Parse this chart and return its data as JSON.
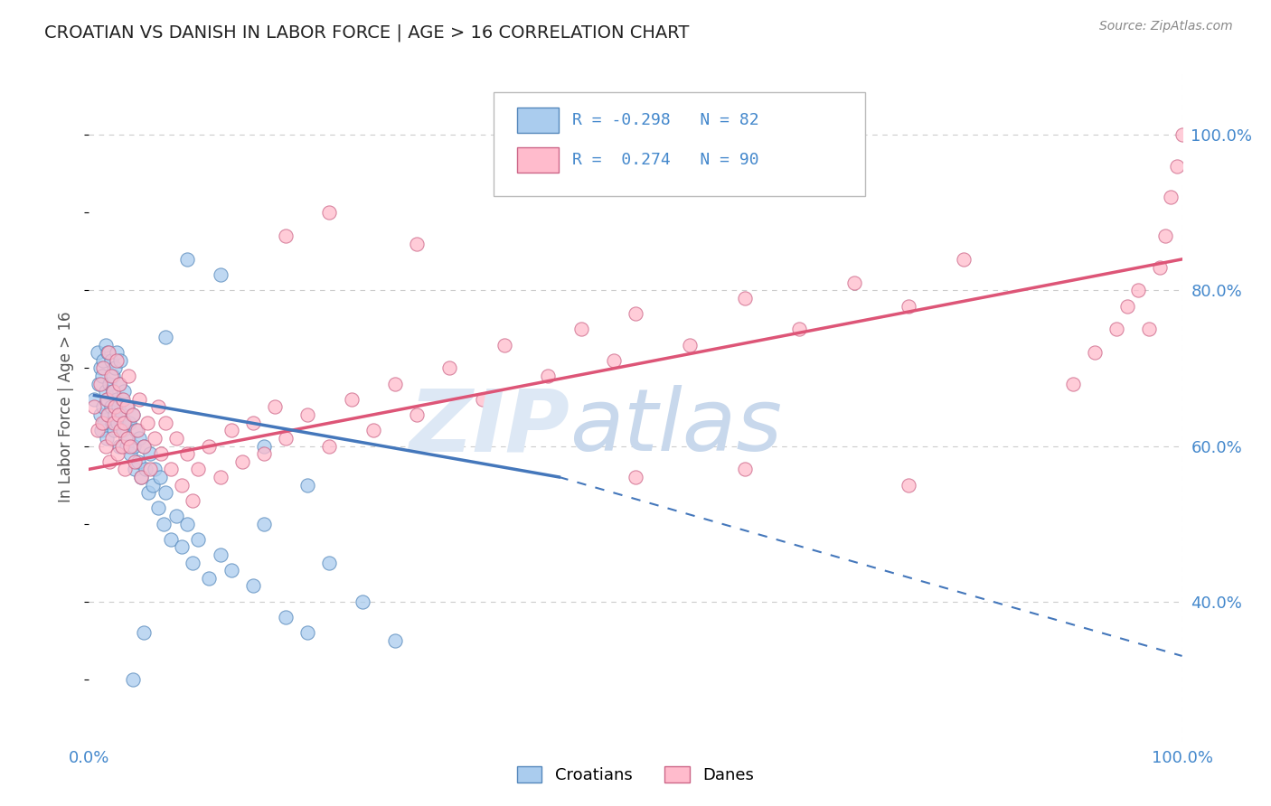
{
  "title": "CROATIAN VS DANISH IN LABOR FORCE | AGE > 16 CORRELATION CHART",
  "source_text": "Source: ZipAtlas.com",
  "ylabel": "In Labor Force | Age > 16",
  "xlim": [
    0.0,
    1.0
  ],
  "ylim_data": [
    0.22,
    1.08
  ],
  "y_tick_vals_right": [
    0.4,
    0.6,
    0.8,
    1.0
  ],
  "y_tick_labels_right": [
    "40.0%",
    "60.0%",
    "80.0%",
    "100.0%"
  ],
  "croatian_color": "#aaccee",
  "croatian_edge": "#5588bb",
  "danish_color": "#ffbbcc",
  "danish_edge": "#cc6688",
  "trend_croatian_color": "#4477bb",
  "trend_danish_color": "#dd5577",
  "grid_color": "#cccccc",
  "background_color": "#ffffff",
  "title_color": "#222222",
  "title_fontsize": 14,
  "tick_color": "#4488cc",
  "legend_r_cro": "R = -0.298",
  "legend_n_cro": "N = 82",
  "legend_r_dan": "R =  0.274",
  "legend_n_dan": "N = 90",
  "croatian_scatter_x": [
    0.005,
    0.008,
    0.009,
    0.01,
    0.01,
    0.011,
    0.012,
    0.013,
    0.013,
    0.014,
    0.015,
    0.015,
    0.016,
    0.017,
    0.017,
    0.018,
    0.019,
    0.02,
    0.02,
    0.021,
    0.022,
    0.022,
    0.023,
    0.024,
    0.024,
    0.025,
    0.025,
    0.026,
    0.027,
    0.028,
    0.028,
    0.029,
    0.03,
    0.03,
    0.031,
    0.032,
    0.033,
    0.034,
    0.035,
    0.036,
    0.037,
    0.038,
    0.04,
    0.041,
    0.042,
    0.043,
    0.045,
    0.046,
    0.048,
    0.05,
    0.052,
    0.054,
    0.056,
    0.058,
    0.06,
    0.063,
    0.065,
    0.068,
    0.07,
    0.075,
    0.08,
    0.085,
    0.09,
    0.095,
    0.1,
    0.11,
    0.12,
    0.13,
    0.15,
    0.16,
    0.18,
    0.2,
    0.22,
    0.25,
    0.28,
    0.12,
    0.09,
    0.07,
    0.16,
    0.2,
    0.05,
    0.04
  ],
  "croatian_scatter_y": [
    0.66,
    0.72,
    0.68,
    0.64,
    0.7,
    0.62,
    0.69,
    0.65,
    0.71,
    0.63,
    0.67,
    0.73,
    0.61,
    0.66,
    0.72,
    0.64,
    0.68,
    0.65,
    0.71,
    0.63,
    0.67,
    0.69,
    0.62,
    0.64,
    0.7,
    0.66,
    0.72,
    0.63,
    0.65,
    0.68,
    0.6,
    0.71,
    0.64,
    0.66,
    0.62,
    0.67,
    0.63,
    0.6,
    0.65,
    0.61,
    0.63,
    0.59,
    0.64,
    0.6,
    0.57,
    0.62,
    0.58,
    0.61,
    0.56,
    0.6,
    0.57,
    0.54,
    0.59,
    0.55,
    0.57,
    0.52,
    0.56,
    0.5,
    0.54,
    0.48,
    0.51,
    0.47,
    0.5,
    0.45,
    0.48,
    0.43,
    0.46,
    0.44,
    0.42,
    0.5,
    0.38,
    0.36,
    0.45,
    0.4,
    0.35,
    0.82,
    0.84,
    0.74,
    0.6,
    0.55,
    0.36,
    0.3
  ],
  "danish_scatter_x": [
    0.005,
    0.008,
    0.01,
    0.012,
    0.013,
    0.015,
    0.016,
    0.017,
    0.018,
    0.019,
    0.02,
    0.021,
    0.022,
    0.023,
    0.024,
    0.025,
    0.026,
    0.027,
    0.028,
    0.029,
    0.03,
    0.031,
    0.032,
    0.033,
    0.034,
    0.035,
    0.036,
    0.038,
    0.04,
    0.042,
    0.044,
    0.046,
    0.048,
    0.05,
    0.053,
    0.056,
    0.06,
    0.063,
    0.066,
    0.07,
    0.075,
    0.08,
    0.085,
    0.09,
    0.095,
    0.1,
    0.11,
    0.12,
    0.13,
    0.14,
    0.15,
    0.16,
    0.17,
    0.18,
    0.2,
    0.22,
    0.24,
    0.26,
    0.28,
    0.3,
    0.33,
    0.36,
    0.38,
    0.42,
    0.45,
    0.48,
    0.5,
    0.55,
    0.6,
    0.65,
    0.7,
    0.75,
    0.8,
    0.3,
    0.22,
    0.18,
    0.5,
    0.6,
    0.75,
    0.9,
    0.92,
    0.94,
    0.95,
    0.96,
    0.97,
    0.98,
    0.985,
    0.99,
    0.995,
    1.0
  ],
  "danish_scatter_y": [
    0.65,
    0.62,
    0.68,
    0.63,
    0.7,
    0.6,
    0.66,
    0.64,
    0.72,
    0.58,
    0.69,
    0.61,
    0.67,
    0.63,
    0.65,
    0.71,
    0.59,
    0.64,
    0.68,
    0.62,
    0.6,
    0.66,
    0.63,
    0.57,
    0.65,
    0.61,
    0.69,
    0.6,
    0.64,
    0.58,
    0.62,
    0.66,
    0.56,
    0.6,
    0.63,
    0.57,
    0.61,
    0.65,
    0.59,
    0.63,
    0.57,
    0.61,
    0.55,
    0.59,
    0.53,
    0.57,
    0.6,
    0.56,
    0.62,
    0.58,
    0.63,
    0.59,
    0.65,
    0.61,
    0.64,
    0.6,
    0.66,
    0.62,
    0.68,
    0.64,
    0.7,
    0.66,
    0.73,
    0.69,
    0.75,
    0.71,
    0.77,
    0.73,
    0.79,
    0.75,
    0.81,
    0.78,
    0.84,
    0.86,
    0.9,
    0.87,
    0.56,
    0.57,
    0.55,
    0.68,
    0.72,
    0.75,
    0.78,
    0.8,
    0.75,
    0.83,
    0.87,
    0.92,
    0.96,
    1.0
  ],
  "trend_cro_x1": 0.005,
  "trend_cro_y1": 0.665,
  "trend_cro_x2": 0.43,
  "trend_cro_y2": 0.56,
  "trend_cro_dash_x1": 0.43,
  "trend_cro_dash_y1": 0.56,
  "trend_cro_dash_x2": 1.0,
  "trend_cro_dash_y2": 0.33,
  "trend_dan_x1": 0.0,
  "trend_dan_y1": 0.57,
  "trend_dan_x2": 1.0,
  "trend_dan_y2": 0.84
}
